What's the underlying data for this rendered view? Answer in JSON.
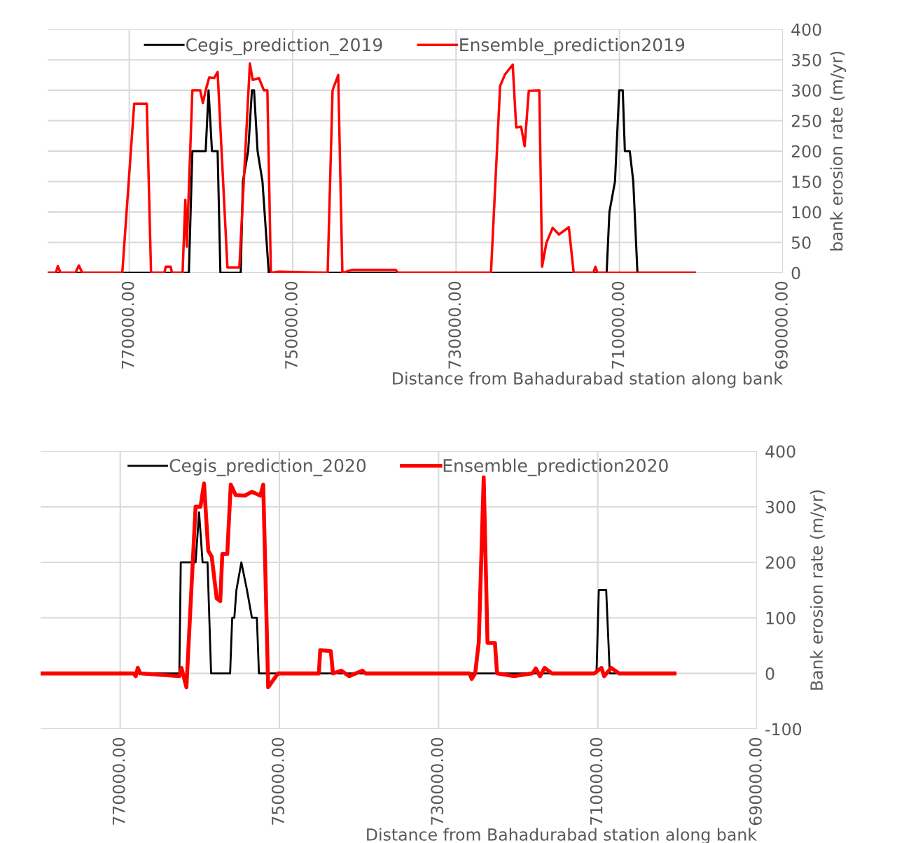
{
  "chart_data": [
    {
      "type": "line",
      "xlabel": "Distance from Bahadurabad station along bank",
      "ylabel": "bank erosion rate (m/yr)",
      "xlim": [
        780000,
        690000
      ],
      "xticks": [
        {
          "value": 770000,
          "label": "770000.00"
        },
        {
          "value": 750000,
          "label": "750000.00"
        },
        {
          "value": 730000,
          "label": "730000.00"
        },
        {
          "value": 710000,
          "label": "710000.00"
        },
        {
          "value": 690000,
          "label": "690000.00"
        }
      ],
      "ylim": [
        0,
        400
      ],
      "yticks": [
        0,
        50,
        100,
        150,
        200,
        250,
        300,
        350,
        400
      ],
      "grid": true,
      "legend": "top",
      "marker": "none",
      "line_style": "solid",
      "series": [
        {
          "name": "Cegis_prediction_2019",
          "color": "#000000",
          "x": [
            780000,
            762710,
            762280,
            760650,
            760300,
            759880,
            759190,
            758850,
            756360,
            756100,
            755450,
            754990,
            754730,
            754300,
            753700,
            752930,
            711570,
            711230,
            710550,
            710030,
            709600,
            709340,
            708740,
            708310,
            707800,
            700800
          ],
          "values": [
            0,
            0,
            200,
            200,
            300,
            200,
            200,
            0,
            0,
            150,
            200,
            300,
            300,
            200,
            150,
            0,
            0,
            100,
            150,
            300,
            300,
            200,
            200,
            150,
            0,
            0
          ]
        },
        {
          "name": "Ensemble_prediction2019",
          "color": "#ff0000",
          "x": [
            780000,
            779000,
            778750,
            778410,
            776600,
            776180,
            775750,
            770860,
            769400,
            767860,
            767340,
            765710,
            765540,
            764940,
            764770,
            763480,
            763140,
            762960,
            762280,
            761330,
            760990,
            760650,
            760220,
            759620,
            759190,
            757990,
            756530,
            755410,
            755240,
            754900,
            754130,
            753530,
            753100,
            752670,
            751700,
            745720,
            745120,
            744430,
            743920,
            742700,
            737400,
            737100,
            725730,
            724610,
            724010,
            723070,
            722640,
            722040,
            721610,
            721100,
            719810,
            719470,
            718950,
            718180,
            717400,
            716200,
            715600,
            713200,
            712940,
            712690,
            700800
          ],
          "values": [
            0,
            0,
            11,
            0,
            0,
            12,
            0,
            0,
            278,
            278,
            0,
            0,
            10,
            10,
            0,
            0,
            120,
            43,
            300,
            300,
            279,
            300,
            321,
            320,
            330,
            9,
            9,
            300,
            344,
            317,
            320,
            300,
            300,
            0,
            2,
            0,
            300,
            325,
            0,
            5,
            5,
            0,
            0,
            307,
            326,
            342,
            239,
            240,
            208,
            299,
            300,
            10,
            49,
            74,
            63,
            75,
            0,
            0,
            10,
            0,
            0
          ]
        }
      ]
    },
    {
      "type": "line",
      "xlabel": "Distance from Bahadurabad station along bank",
      "ylabel": "Bank erosion rate (m/yr)",
      "xlim": [
        780000,
        690000
      ],
      "xticks": [
        {
          "value": 770000,
          "label": "770000.00"
        },
        {
          "value": 750000,
          "label": "750000.00"
        },
        {
          "value": 730000,
          "label": "730000.00"
        },
        {
          "value": 710000,
          "label": "710000.00"
        },
        {
          "value": 690000,
          "label": "690000.00"
        }
      ],
      "ylim": [
        -100,
        400
      ],
      "yticks": [
        -100,
        0,
        100,
        200,
        300,
        400
      ],
      "grid": true,
      "legend": "top",
      "marker": "none",
      "line_style": "solid",
      "series": [
        {
          "name": "Cegis_prediction_2020",
          "color": "#000000",
          "x": [
            780000,
            762570,
            762390,
            760530,
            760090,
            759650,
            759030,
            758580,
            756190,
            755930,
            755660,
            755400,
            754780,
            754070,
            753450,
            752830,
            752570,
            710160,
            709870,
            708940,
            708490,
            700350
          ],
          "values": [
            0,
            0,
            200,
            200,
            290,
            200,
            200,
            0,
            0,
            100,
            100,
            150,
            200,
            150,
            100,
            100,
            0,
            0,
            150,
            150,
            0,
            0
          ]
        },
        {
          "name": "Ensemble_prediction2020",
          "color": "#ff0000",
          "x": [
            780000,
            768300,
            768050,
            767790,
            767500,
            762570,
            762300,
            761680,
            760530,
            759910,
            759470,
            758940,
            758500,
            757880,
            757430,
            757170,
            756550,
            756110,
            755490,
            754340,
            753450,
            752390,
            752030,
            751410,
            750180,
            745040,
            744870,
            743540,
            743270,
            742210,
            741240,
            739560,
            739200,
            726100,
            725840,
            725400,
            724950,
            724330,
            723850,
            722920,
            722650,
            720530,
            718200,
            717790,
            717250,
            716680,
            715750,
            710440,
            709540,
            709190,
            708310,
            707340,
            700350
          ],
          "values": [
            0,
            0,
            -5,
            10,
            0,
            -5,
            10,
            -25,
            300,
            300,
            342,
            221,
            210,
            135,
            130,
            215,
            215,
            340,
            321,
            320,
            327,
            320,
            340,
            -25,
            0,
            0,
            42,
            40,
            0,
            5,
            -5,
            5,
            0,
            0,
            -10,
            0,
            56,
            353,
            55,
            55,
            0,
            -5,
            0,
            9,
            -5,
            10,
            0,
            0,
            10,
            -5,
            10,
            0,
            0
          ]
        }
      ]
    }
  ]
}
